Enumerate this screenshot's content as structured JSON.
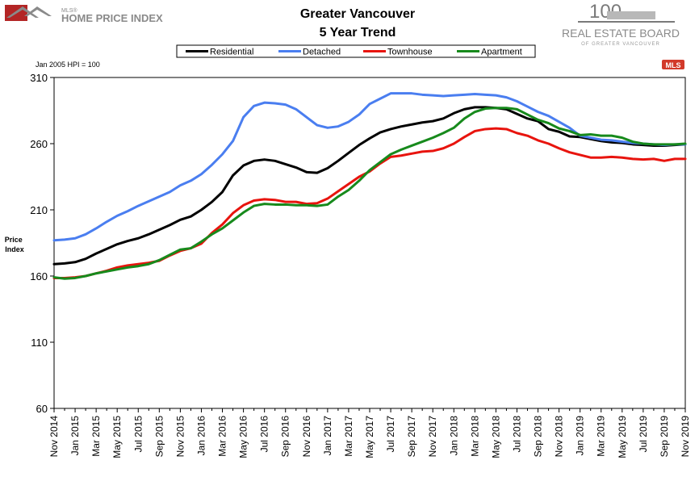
{
  "header": {
    "mls_logo_small": "MLS®",
    "mls_logo_text": "HOME PRICE INDEX",
    "board_logo_number": "100",
    "board_logo_title": "REAL ESTATE BOARD",
    "board_logo_subtitle": "OF GREATER VANCOUVER",
    "mls_badge": "MLS"
  },
  "colors": {
    "residential": "#000000",
    "detached": "#4a7ef0",
    "townhouse": "#e8140e",
    "apartment": "#178a1c",
    "grid": "#000000",
    "logo_red": "#b32525",
    "logo_gray": "#8a8a8a"
  },
  "chart_data": {
    "type": "line",
    "title": "Greater Vancouver",
    "subtitle": "5 Year Trend",
    "note": "Jan 2005 HPI = 100",
    "xlabel": "",
    "ylabel": "Price Index",
    "ylim": [
      60,
      310
    ],
    "yticks": [
      60,
      110,
      160,
      210,
      260,
      310
    ],
    "grid": false,
    "legend_position": "top",
    "x": [
      "Nov 2014",
      "Dec 2014",
      "Jan 2015",
      "Feb 2015",
      "Mar 2015",
      "Apr 2015",
      "May 2015",
      "Jun 2015",
      "Jul 2015",
      "Aug 2015",
      "Sep 2015",
      "Oct 2015",
      "Nov 2015",
      "Dec 2015",
      "Jan 2016",
      "Feb 2016",
      "Mar 2016",
      "Apr 2016",
      "May 2016",
      "Jun 2016",
      "Jul 2016",
      "Aug 2016",
      "Sep 2016",
      "Oct 2016",
      "Nov 2016",
      "Dec 2016",
      "Jan 2017",
      "Feb 2017",
      "Mar 2017",
      "Apr 2017",
      "May 2017",
      "Jun 2017",
      "Jul 2017",
      "Aug 2017",
      "Sep 2017",
      "Oct 2017",
      "Nov 2017",
      "Dec 2017",
      "Jan 2018",
      "Feb 2018",
      "Mar 2018",
      "Apr 2018",
      "May 2018",
      "Jun 2018",
      "Jul 2018",
      "Aug 2018",
      "Sep 2018",
      "Oct 2018",
      "Nov 2018",
      "Dec 2018",
      "Jan 2019",
      "Feb 2019",
      "Mar 2019",
      "Apr 2019",
      "May 2019",
      "Jun 2019",
      "Jul 2019",
      "Aug 2019",
      "Sep 2019",
      "Oct 2019",
      "Nov 2019"
    ],
    "xticks": [
      "Nov 2014",
      "Jan 2015",
      "Mar 2015",
      "May 2015",
      "Jul 2015",
      "Sep 2015",
      "Nov 2015",
      "Jan 2016",
      "Mar 2016",
      "May 2016",
      "Jul 2016",
      "Sep 2016",
      "Nov 2016",
      "Jan 2017",
      "Mar 2017",
      "May 2017",
      "Jul 2017",
      "Sep 2017",
      "Nov 2017",
      "Jan 2018",
      "Mar 2018",
      "May 2018",
      "Jul 2018",
      "Sep 2018",
      "Nov 2018",
      "Jan 2019",
      "Mar 2019",
      "May 2019",
      "Jul 2019",
      "Sep 2019",
      "Nov 2019"
    ],
    "series": [
      {
        "name": "Residential",
        "color_key": "residential",
        "values": [
          169,
          169.5,
          170.5,
          173,
          177,
          180.5,
          184,
          186.5,
          188.5,
          191.5,
          195,
          198.5,
          202.5,
          205,
          210,
          216,
          223.5,
          236,
          243.5,
          247,
          248,
          247,
          244.5,
          242,
          238.5,
          238,
          241.5,
          247,
          253,
          259,
          264,
          268.5,
          271,
          273,
          274.5,
          276,
          277,
          279,
          283,
          286,
          287.5,
          287.5,
          287,
          286,
          282.5,
          279,
          277,
          271,
          269,
          265.5,
          265,
          263.5,
          262,
          261,
          260.5,
          259.5,
          259,
          258.5,
          258.5,
          259,
          259.5
        ]
      },
      {
        "name": "Detached",
        "color_key": "detached",
        "values": [
          187,
          187.5,
          188.5,
          191.5,
          196,
          201,
          205.5,
          209,
          213,
          216.5,
          220,
          223.5,
          228.5,
          232,
          237,
          244,
          252,
          262,
          280,
          288.5,
          291,
          290.5,
          289.5,
          286,
          280,
          274,
          272,
          273,
          276.5,
          282,
          290,
          294,
          298,
          298,
          298,
          297,
          296.5,
          296,
          296.5,
          297,
          297.5,
          297,
          296.5,
          295,
          292,
          288,
          284,
          281,
          276.5,
          272,
          266,
          264.5,
          263,
          262.5,
          261.5,
          260.5,
          260,
          259.5,
          259,
          259.5,
          259.5
        ]
      },
      {
        "name": "Townhouse",
        "color_key": "townhouse",
        "values": [
          158.5,
          158.5,
          159,
          160,
          162,
          164,
          166.5,
          168,
          169,
          170,
          171.5,
          175.5,
          179,
          181,
          184.5,
          192.5,
          199,
          207.5,
          213.5,
          217,
          218,
          217.5,
          216,
          216,
          214.5,
          215,
          218.5,
          224,
          229.5,
          235,
          239,
          245,
          250,
          251,
          252.5,
          254,
          254.5,
          256.5,
          260,
          265,
          269.5,
          271,
          271.5,
          271,
          268,
          266,
          262.5,
          260,
          256.5,
          253.5,
          251.5,
          249.5,
          249.5,
          250,
          249.5,
          248.5,
          248,
          248.5,
          247,
          248.5,
          248.5
        ]
      },
      {
        "name": "Apartment",
        "color_key": "apartment",
        "values": [
          159,
          158,
          158.5,
          160,
          162,
          163.5,
          165,
          166.5,
          167.5,
          169,
          172,
          176,
          180,
          181,
          186,
          191.5,
          196,
          202,
          208,
          213,
          214.5,
          214,
          214,
          213.5,
          213.5,
          213,
          214,
          220,
          225,
          232,
          240,
          246,
          252,
          255.5,
          258.5,
          261.5,
          264.5,
          268,
          272,
          279,
          284,
          286.5,
          287,
          287,
          286,
          282,
          278,
          275.5,
          271.5,
          269.5,
          266.5,
          267,
          266,
          266,
          264.5,
          261.5,
          260,
          259.5,
          259.5,
          259.5,
          260
        ]
      }
    ]
  }
}
